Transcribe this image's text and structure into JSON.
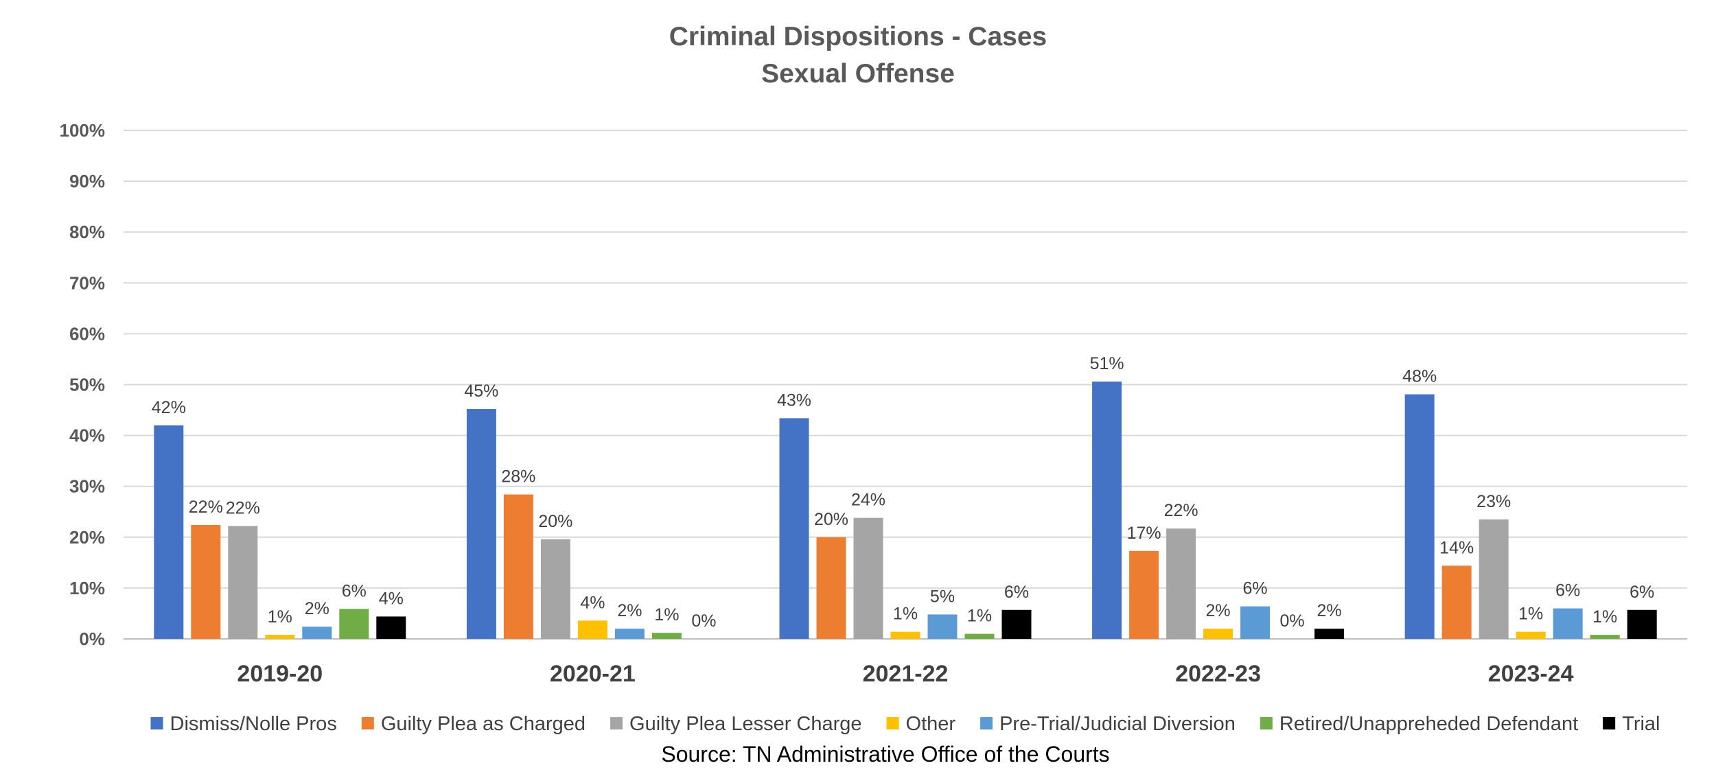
{
  "chart_data": {
    "type": "bar",
    "title": "Criminal Dispositions - Cases",
    "subtitle": "Sexual Offense",
    "categories": [
      "2019-20",
      "2020-21",
      "2021-22",
      "2022-23",
      "2023-24"
    ],
    "ylim": [
      0,
      100
    ],
    "yticks": [
      "0%",
      "10%",
      "20%",
      "30%",
      "40%",
      "50%",
      "60%",
      "70%",
      "80%",
      "90%",
      "100%"
    ],
    "grid": true,
    "legend_position": "bottom",
    "series": [
      {
        "name": "Dismiss/Nolle Pros",
        "color": "#4472C4",
        "values": [
          42,
          45.2,
          43.4,
          50.6,
          48.1
        ],
        "labels": [
          "42%",
          "45%",
          "43%",
          "51%",
          "48%"
        ]
      },
      {
        "name": "Guilty Plea as Charged",
        "color": "#ED7D31",
        "values": [
          22.4,
          28.4,
          20,
          17.3,
          14.4
        ],
        "labels": [
          "22%",
          "28%",
          "20%",
          "17%",
          "14%"
        ]
      },
      {
        "name": "Guilty Plea Lesser Charge",
        "color": "#A5A5A5",
        "values": [
          22.2,
          19.6,
          23.8,
          21.7,
          23.5
        ],
        "labels": [
          "22%",
          "20%",
          "24%",
          "22%",
          "23%"
        ]
      },
      {
        "name": "Other",
        "color": "#FFC000",
        "values": [
          0.8,
          3.6,
          1.4,
          2,
          1.4
        ],
        "labels": [
          "1%",
          "4%",
          "1%",
          "2%",
          "1%"
        ]
      },
      {
        "name": "Pre-Trial/Judicial Diversion",
        "color": "#5B9BD5",
        "values": [
          2.4,
          2,
          4.8,
          6.4,
          6
        ],
        "labels": [
          "2%",
          "2%",
          "5%",
          "6%",
          "6%"
        ]
      },
      {
        "name": "Retired/Unappreheded Defendant",
        "color": "#70AD47",
        "values": [
          5.9,
          1.2,
          1,
          0,
          0.8
        ],
        "labels": [
          "6%",
          "1%",
          "1%",
          "0%",
          "1%"
        ]
      },
      {
        "name": "Trial",
        "color": "#000000",
        "values": [
          4.4,
          0,
          5.7,
          2,
          5.7
        ],
        "labels": [
          "4%",
          "0%",
          "6%",
          "2%",
          "6%"
        ]
      }
    ]
  },
  "source_note": "Source: TN Administrative Office of the Courts"
}
